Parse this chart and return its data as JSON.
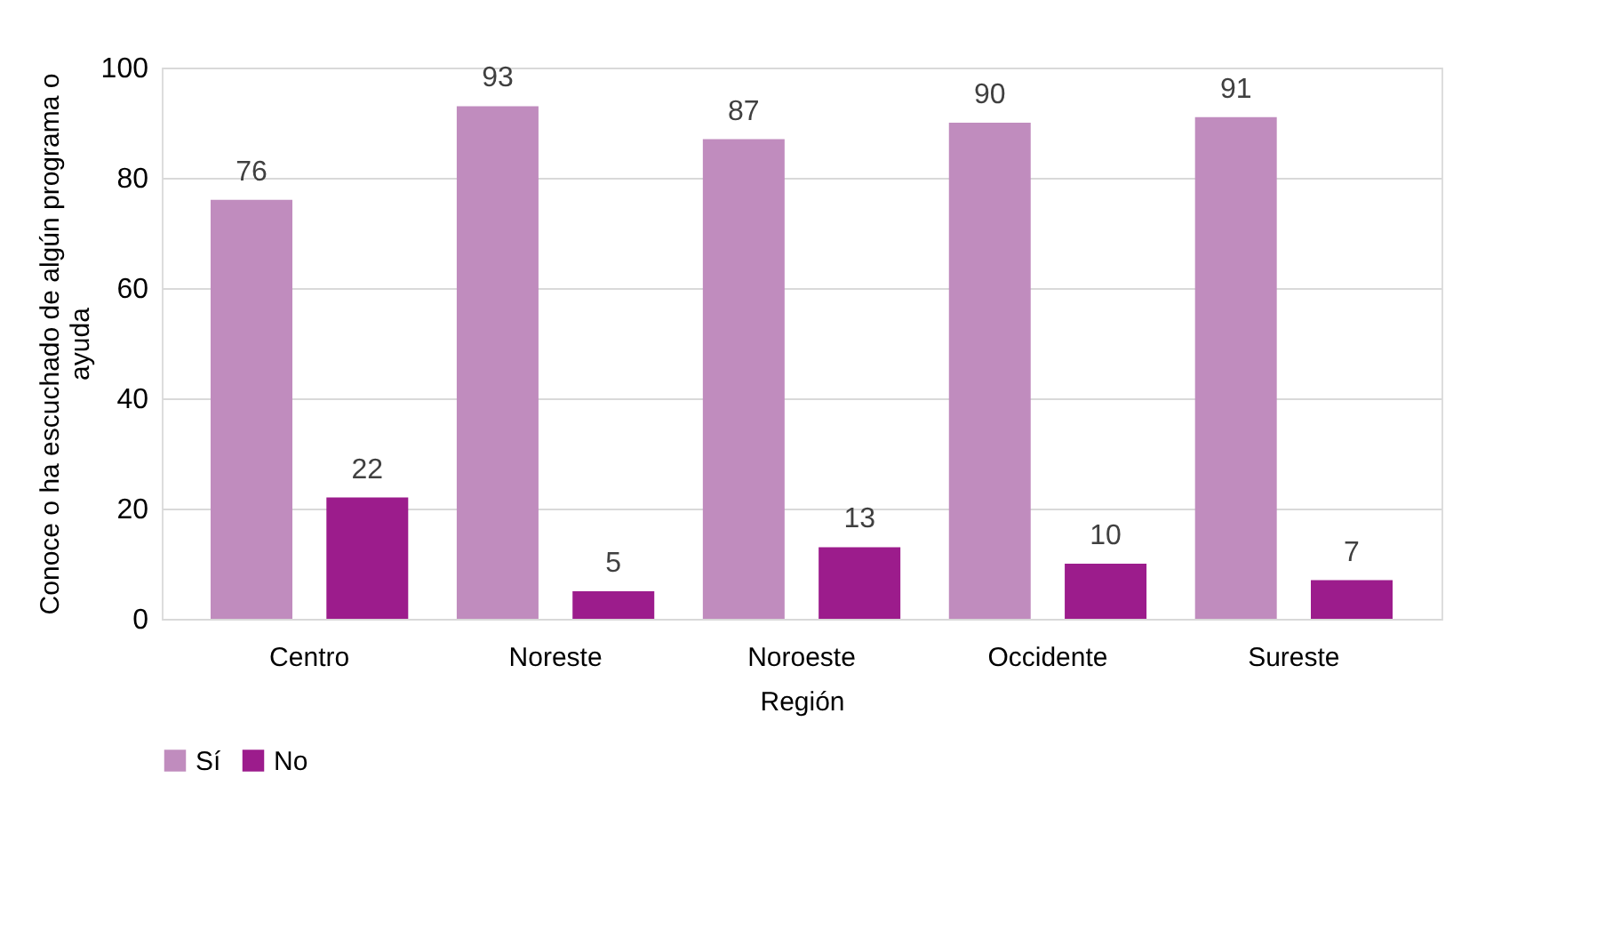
{
  "chart_data": {
    "type": "bar",
    "xlabel": "Región",
    "ylabel": "Conoce o ha escuchado de algún programa o ayuda",
    "categories": [
      "Centro",
      "Noreste",
      "Noroeste",
      "Occidente",
      "Sureste"
    ],
    "series": [
      {
        "name": "Sí",
        "color": "#c08cbe",
        "values": [
          76,
          93,
          87,
          90,
          91
        ]
      },
      {
        "name": "No",
        "color": "#9c1c8c",
        "values": [
          22,
          5,
          13,
          10,
          7
        ]
      }
    ],
    "ylim": [
      0,
      100
    ],
    "yticks": [
      0,
      20,
      40,
      60,
      80,
      100
    ],
    "grid": "y",
    "legend": "bottom",
    "data_labels": true
  }
}
